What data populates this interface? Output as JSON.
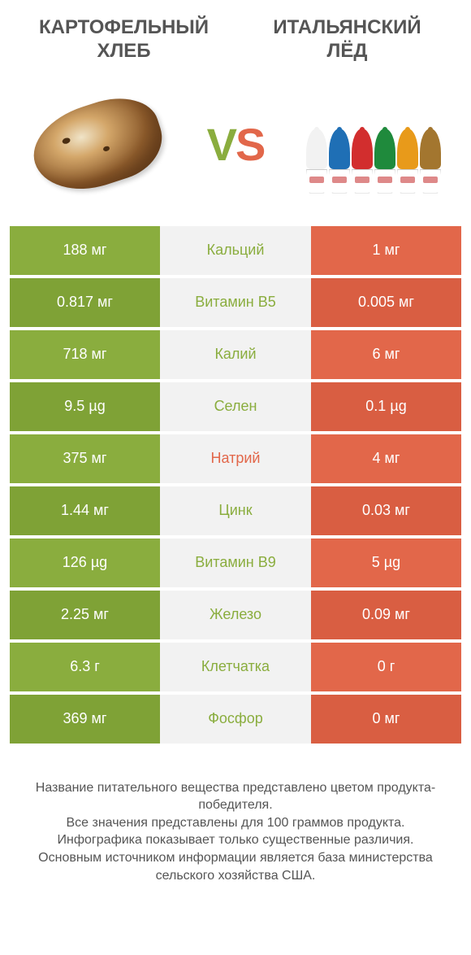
{
  "colors": {
    "green": "#8aad3e",
    "green_dark": "#7fa236",
    "orange": "#e2674a",
    "orange_dark": "#d95e42",
    "nutrient_bg": "#f2f2f2",
    "title_text": "#555555",
    "footer_text": "#555555",
    "white": "#ffffff"
  },
  "left_product": {
    "title_line1": "КАРТОФЕЛЬНЫЙ",
    "title_line2": "ХЛЕБ"
  },
  "right_product": {
    "title_line1": "ИТАЛЬЯНСКИЙ",
    "title_line2": "ЛЁД"
  },
  "vs": {
    "v": "V",
    "s": "S"
  },
  "ice_colors": [
    "#f2f2f2",
    "#1f6fb5",
    "#d22e2e",
    "#1f8a3c",
    "#e89a1a",
    "#a3762f"
  ],
  "rows": [
    {
      "left": "188 мг",
      "nutrient": "Кальций",
      "right": "1 мг",
      "winner": "left"
    },
    {
      "left": "0.817 мг",
      "nutrient": "Витамин B5",
      "right": "0.005 мг",
      "winner": "left"
    },
    {
      "left": "718 мг",
      "nutrient": "Калий",
      "right": "6 мг",
      "winner": "left"
    },
    {
      "left": "9.5 µg",
      "nutrient": "Селен",
      "right": "0.1 µg",
      "winner": "left"
    },
    {
      "left": "375 мг",
      "nutrient": "Натрий",
      "right": "4 мг",
      "winner": "right"
    },
    {
      "left": "1.44 мг",
      "nutrient": "Цинк",
      "right": "0.03 мг",
      "winner": "left"
    },
    {
      "left": "126 µg",
      "nutrient": "Витамин B9",
      "right": "5 µg",
      "winner": "left"
    },
    {
      "left": "2.25 мг",
      "nutrient": "Железо",
      "right": "0.09 мг",
      "winner": "left"
    },
    {
      "left": "6.3 г",
      "nutrient": "Клетчатка",
      "right": "0 г",
      "winner": "left"
    },
    {
      "left": "369 мг",
      "nutrient": "Фосфор",
      "right": "0 мг",
      "winner": "left"
    }
  ],
  "footer": {
    "line1": "Название питательного вещества представлено цветом продукта-победителя.",
    "line2": "Все значения представлены для 100 граммов продукта.",
    "line3": "Инфографика показывает только существенные различия.",
    "line4": "Основным источником информации является база министерства сельского хозяйства США."
  }
}
